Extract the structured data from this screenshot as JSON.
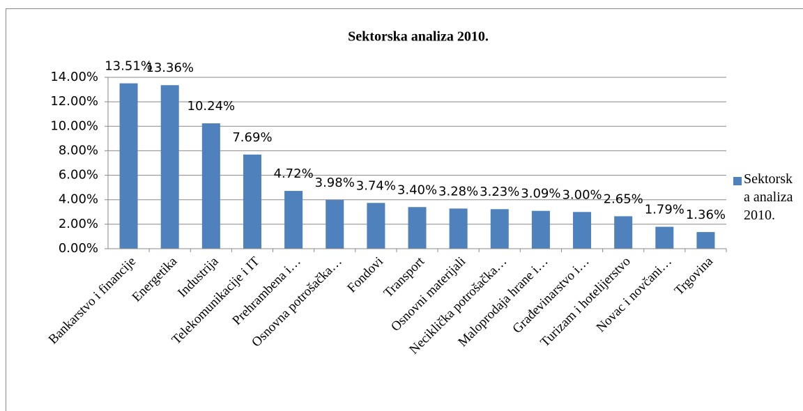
{
  "chart_data": {
    "type": "bar",
    "title": "Sektorska analiza 2010.",
    "categories": [
      "Bankarstvo i financije",
      "Energetika",
      "Industrija",
      "Telekomunikacije i IT",
      "Prehrambena i…",
      "Osnovna potrošačka…",
      "Fondovi",
      "Transport",
      "Osnovni materijali",
      "Neciklička potrošačka…",
      "Maloprodaja hrane i…",
      "Građevinarstvo i…",
      "Turizam i hotelijerstvo",
      "Novac i novčani…",
      "Trgovina"
    ],
    "series": [
      {
        "name": "Sektorska analiza 2010.",
        "color": "#4f81bd",
        "values": [
          13.51,
          13.36,
          10.24,
          7.69,
          4.72,
          3.98,
          3.74,
          3.4,
          3.28,
          3.23,
          3.09,
          3.0,
          2.65,
          1.79,
          1.36
        ],
        "value_labels": [
          "13.51%",
          "13.36%",
          "10.24%",
          "7.69%",
          "4.72%",
          "3.98%",
          "3.74%",
          "3.40%",
          "3.28%",
          "3.23%",
          "3.09%",
          "3.00%",
          "2.65%",
          "1.79%",
          "1.36%"
        ]
      }
    ],
    "ylim": [
      0,
      14
    ],
    "yticks": [
      {
        "value": 0,
        "label": "0.00%"
      },
      {
        "value": 2,
        "label": "2.00%"
      },
      {
        "value": 4,
        "label": "4.00%"
      },
      {
        "value": 6,
        "label": "6.00%"
      },
      {
        "value": 8,
        "label": "8.00%"
      },
      {
        "value": 10,
        "label": "10.00%"
      },
      {
        "value": 12,
        "label": "12.00%"
      },
      {
        "value": 14,
        "label": "14.00%"
      }
    ],
    "grid": true,
    "legend": "right"
  }
}
